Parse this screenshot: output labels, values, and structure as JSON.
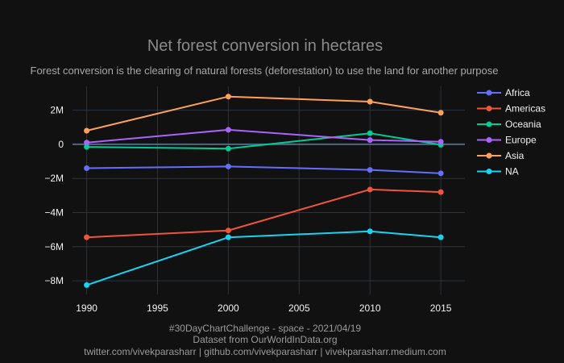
{
  "chart_data": {
    "type": "line",
    "title": "Net forest conversion in hectares",
    "subtitle": "Forest conversion is the clearing of natural forests (deforestation) to use the land for another purpose",
    "x": [
      1990,
      2000,
      2010,
      2015
    ],
    "x_ticks": [
      1990,
      1995,
      2000,
      2005,
      2010,
      2015
    ],
    "x_tick_labels": [
      "1990",
      "1995",
      "2000",
      "2005",
      "2010",
      "2015"
    ],
    "y_ticks": [
      2000000,
      0,
      -2000000,
      -4000000,
      -6000000,
      -8000000
    ],
    "y_tick_labels": [
      "2M",
      "0",
      "−2M",
      "−4M",
      "−6M",
      "−8M"
    ],
    "xlim": [
      1989,
      2016.7
    ],
    "ylim": [
      -8800000,
      3400000
    ],
    "grid": true,
    "legend_position": "right",
    "series": [
      {
        "name": "Africa",
        "color": "#636efa",
        "values": [
          -1400000,
          -1300000,
          -1500000,
          -1700000
        ]
      },
      {
        "name": "Americas",
        "color": "#ef553b",
        "values": [
          -5450000,
          -5050000,
          -2650000,
          -2800000
        ]
      },
      {
        "name": "Oceania",
        "color": "#00cc96",
        "values": [
          -150000,
          -250000,
          650000,
          -30000
        ]
      },
      {
        "name": "Europe",
        "color": "#ab63fa",
        "values": [
          100000,
          850000,
          250000,
          150000
        ]
      },
      {
        "name": "Asia",
        "color": "#ffa15a",
        "values": [
          800000,
          2800000,
          2500000,
          1850000
        ]
      },
      {
        "name": "NA",
        "color": "#19d3f3",
        "values": [
          -8250000,
          -5450000,
          -5100000,
          -5450000
        ]
      }
    ]
  },
  "footer": {
    "line1": "#30DayChartChallenge - space - 2021/04/19",
    "line2": "Dataset from OurWorldInData.org",
    "line3": "twitter.com/vivekparasharr | github.com/vivekparasharr | vivekparasharr.medium.com"
  },
  "colors": {
    "background": "#111111",
    "grid": "#283442",
    "zero_line": "#506784"
  }
}
